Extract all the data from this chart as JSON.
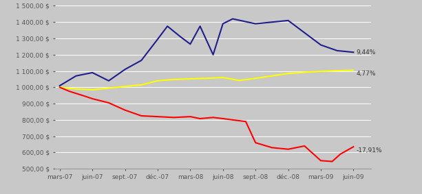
{
  "x_labels": [
    "mars-07",
    "juin-07",
    "sept.-07",
    "déc.-07",
    "mars-08",
    "juin-08",
    "sept.-08",
    "déc.-08",
    "mars-09",
    "juin-09"
  ],
  "blue_data": [
    [
      0,
      1010
    ],
    [
      0.5,
      1070
    ],
    [
      1.0,
      1090
    ],
    [
      1.5,
      1040
    ],
    [
      2.0,
      1110
    ],
    [
      2.5,
      1165
    ],
    [
      3.0,
      1295
    ],
    [
      3.3,
      1375
    ],
    [
      3.7,
      1310
    ],
    [
      4.0,
      1265
    ],
    [
      4.3,
      1375
    ],
    [
      4.7,
      1200
    ],
    [
      5.0,
      1390
    ],
    [
      5.3,
      1420
    ],
    [
      6.0,
      1390
    ],
    [
      6.5,
      1400
    ],
    [
      7.0,
      1410
    ],
    [
      8.0,
      1260
    ],
    [
      8.5,
      1225
    ],
    [
      9.0,
      1215
    ]
  ],
  "yellow_data": [
    [
      0,
      1000
    ],
    [
      0.5,
      990
    ],
    [
      1.0,
      985
    ],
    [
      1.5,
      995
    ],
    [
      2.0,
      1005
    ],
    [
      2.5,
      1015
    ],
    [
      3.0,
      1040
    ],
    [
      3.5,
      1048
    ],
    [
      4.0,
      1052
    ],
    [
      4.5,
      1055
    ],
    [
      5.0,
      1060
    ],
    [
      5.5,
      1042
    ],
    [
      6.0,
      1055
    ],
    [
      6.5,
      1070
    ],
    [
      7.0,
      1085
    ],
    [
      7.5,
      1092
    ],
    [
      8.0,
      1098
    ],
    [
      8.5,
      1102
    ],
    [
      9.0,
      1105
    ]
  ],
  "red_data": [
    [
      0,
      1000
    ],
    [
      0.3,
      975
    ],
    [
      0.7,
      950
    ],
    [
      1.0,
      930
    ],
    [
      1.5,
      905
    ],
    [
      2.0,
      860
    ],
    [
      2.5,
      825
    ],
    [
      3.0,
      820
    ],
    [
      3.5,
      815
    ],
    [
      4.0,
      820
    ],
    [
      4.3,
      808
    ],
    [
      4.7,
      815
    ],
    [
      5.0,
      808
    ],
    [
      5.3,
      800
    ],
    [
      5.7,
      790
    ],
    [
      6.0,
      660
    ],
    [
      6.5,
      630
    ],
    [
      7.0,
      620
    ],
    [
      7.5,
      640
    ],
    [
      8.0,
      550
    ],
    [
      8.35,
      545
    ],
    [
      8.6,
      590
    ],
    [
      9.0,
      635
    ]
  ],
  "blue_label": "9,44%",
  "yellow_label": "4,77%",
  "red_label": "-17,91%",
  "ylim": [
    500,
    1500
  ],
  "yticks": [
    500,
    600,
    700,
    800,
    900,
    1000,
    1100,
    1200,
    1300,
    1400,
    1500
  ],
  "bg_color": "#c8c8c8",
  "plot_bg_color": "#c8c8c8",
  "blue_color": "#1E1E8C",
  "yellow_color": "#FFFF00",
  "red_color": "#FF0000",
  "label_fontsize": 6.5,
  "tick_fontsize": 6.5,
  "line_width": 1.5,
  "grid_color": "#b0b0b0",
  "white_grid": "#e8e8e8"
}
